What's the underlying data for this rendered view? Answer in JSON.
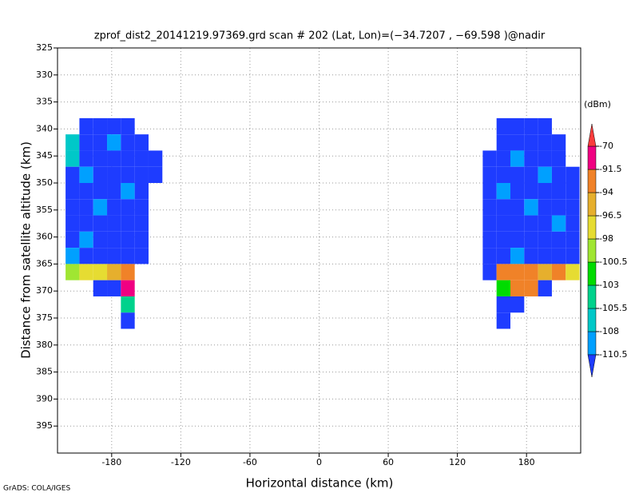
{
  "chart_data": {
    "type": "heatmap",
    "title": "zprof_dist2_20141219.97369.grd   scan # 202  (Lat, Lon)=(−34.7207 , −69.598 )@nadir",
    "x_label": "Horizontal distance (km)",
    "y_label": "Distance from satellite altitude (km)",
    "footer": "GrADS: COLA/IGES",
    "colorbar_label": "(dBm)",
    "xlim": [
      -227,
      227
    ],
    "ylim": [
      400,
      325
    ],
    "y_inverted": true,
    "xticks": [
      -180,
      -120,
      -60,
      0,
      60,
      120,
      180
    ],
    "yticks": [
      325,
      330,
      335,
      340,
      345,
      350,
      355,
      360,
      365,
      370,
      375,
      380,
      385,
      390,
      395
    ],
    "grid": true,
    "clevs": [
      -110.5,
      -108,
      -105.5,
      -103,
      -100.5,
      -98,
      -96.5,
      -94,
      -91.5,
      -70
    ],
    "colors": [
      "#1e3cff",
      "#00a0ff",
      "#00c8c8",
      "#00d28c",
      "#00dc00",
      "#a0e632",
      "#e6dc32",
      "#e6af2d",
      "#f08228",
      "#f00082",
      "#fa3c3c"
    ],
    "blobs": [
      {
        "x_edges": [
          -220,
          -208,
          -196,
          -184,
          -172,
          -160,
          -148,
          -136
        ],
        "y_edges": [
          338,
          341,
          344,
          347,
          350,
          353,
          356,
          359,
          362,
          365,
          368,
          371,
          374,
          377
        ],
        "values": [
          [
            null,
            -112,
            -112,
            -112,
            -112,
            null,
            null
          ],
          [
            -107,
            -112,
            -112,
            -109,
            -112,
            -112,
            null
          ],
          [
            -107,
            -112,
            -112,
            -112,
            -112,
            -112,
            -112
          ],
          [
            -112,
            -109,
            -112,
            -112,
            -112,
            -112,
            -112
          ],
          [
            -112,
            -112,
            -112,
            -112,
            -109,
            -112,
            null
          ],
          [
            -112,
            -112,
            -109,
            -112,
            -112,
            -112,
            null
          ],
          [
            -112,
            -112,
            -112,
            -112,
            -112,
            -112,
            null
          ],
          [
            -112,
            -109,
            -112,
            -112,
            -112,
            -112,
            null
          ],
          [
            -109,
            -112,
            -112,
            -112,
            -112,
            -112,
            null
          ],
          [
            -99,
            -97,
            -97,
            -95,
            -92,
            null,
            null
          ],
          [
            null,
            null,
            -112,
            -112,
            -80,
            null,
            null
          ],
          [
            null,
            null,
            null,
            null,
            -104,
            null,
            null
          ],
          [
            null,
            null,
            null,
            null,
            -112,
            null,
            null
          ]
        ]
      },
      {
        "x_edges": [
          142,
          154,
          166,
          178,
          190,
          202,
          214,
          226
        ],
        "y_edges": [
          338,
          341,
          344,
          347,
          350,
          353,
          356,
          359,
          362,
          365,
          368,
          371,
          374,
          377
        ],
        "values": [
          [
            null,
            -112,
            -112,
            -112,
            -112,
            null,
            null
          ],
          [
            null,
            -112,
            -112,
            -112,
            -112,
            -112,
            null
          ],
          [
            -112,
            -112,
            -109,
            -112,
            -112,
            -112,
            null
          ],
          [
            -112,
            -112,
            -112,
            -112,
            -109,
            -112,
            -112
          ],
          [
            -112,
            -109,
            -112,
            -112,
            -112,
            -112,
            -112
          ],
          [
            -112,
            -112,
            -112,
            -109,
            -112,
            -112,
            -112
          ],
          [
            -112,
            -112,
            -112,
            -112,
            -112,
            -109,
            -112
          ],
          [
            -112,
            -112,
            -112,
            -112,
            -112,
            -112,
            -112
          ],
          [
            -112,
            -112,
            -109,
            -112,
            -112,
            -112,
            -112
          ],
          [
            -112,
            -92,
            -92,
            -92,
            -95,
            -92,
            -97
          ],
          [
            null,
            -101,
            -92,
            -92,
            -112,
            null,
            null
          ],
          [
            null,
            -112,
            -112,
            null,
            null,
            null,
            null
          ],
          [
            null,
            -112,
            null,
            null,
            null,
            null,
            null
          ]
        ]
      }
    ]
  }
}
